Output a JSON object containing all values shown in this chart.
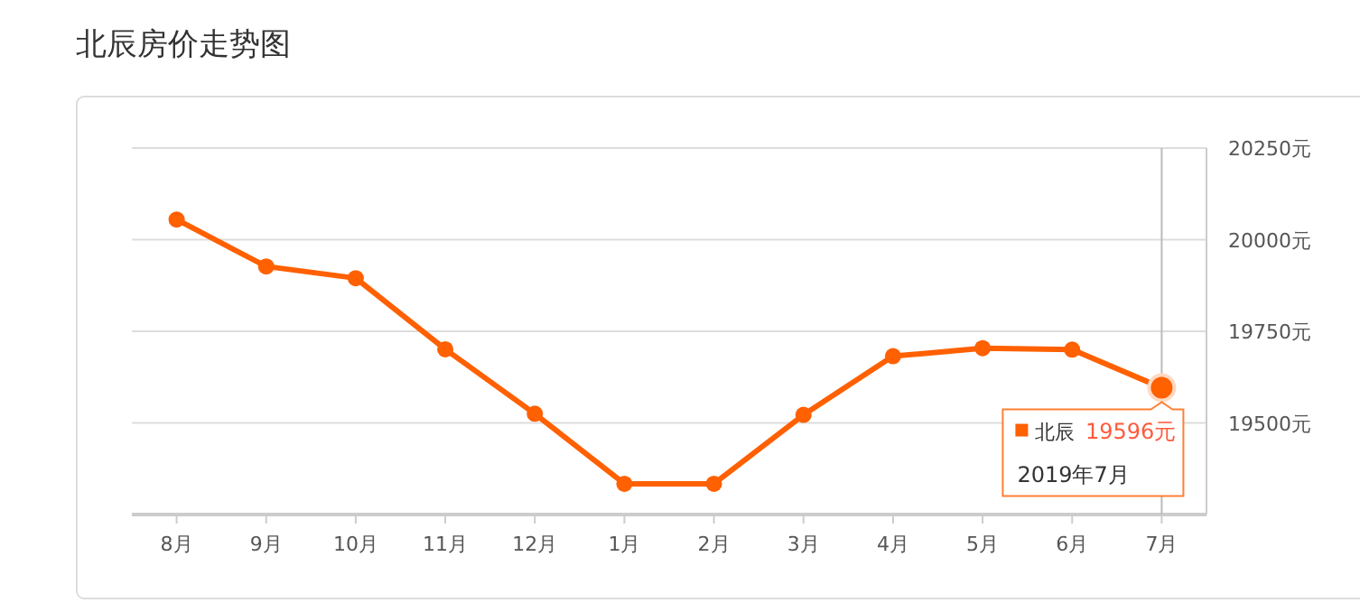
{
  "chart_data": {
    "type": "line",
    "title": "北辰房价走势图",
    "categories": [
      "8月",
      "9月",
      "10月",
      "11月",
      "12月",
      "1月",
      "2月",
      "3月",
      "4月",
      "5月",
      "6月",
      "7月"
    ],
    "series": [
      {
        "name": "北辰",
        "color": "#ff6000",
        "values": [
          20055,
          19927,
          19895,
          19701,
          19525,
          19334,
          19334,
          19522,
          19682,
          19704,
          19700,
          19596
        ],
        "value_labels": [
          null,
          null,
          null,
          null,
          null,
          null,
          null,
          null,
          null,
          null,
          null,
          "19596元"
        ]
      }
    ],
    "ylim": [
      19250,
      20250
    ],
    "yticks": [
      {
        "value": 19250,
        "label": null
      },
      {
        "value": 19500,
        "label": "19500元"
      },
      {
        "value": 19750,
        "label": "19750元"
      },
      {
        "value": 20000,
        "label": "20000元"
      },
      {
        "value": 20250,
        "label": "20250元"
      }
    ],
    "grid": "y",
    "marker": "circle",
    "line_style": "solid",
    "annotations": [
      "2019年7月"
    ],
    "ref_lines": [
      {
        "axis": "x",
        "value": "7月",
        "color": "#bbbbbb"
      }
    ]
  }
}
